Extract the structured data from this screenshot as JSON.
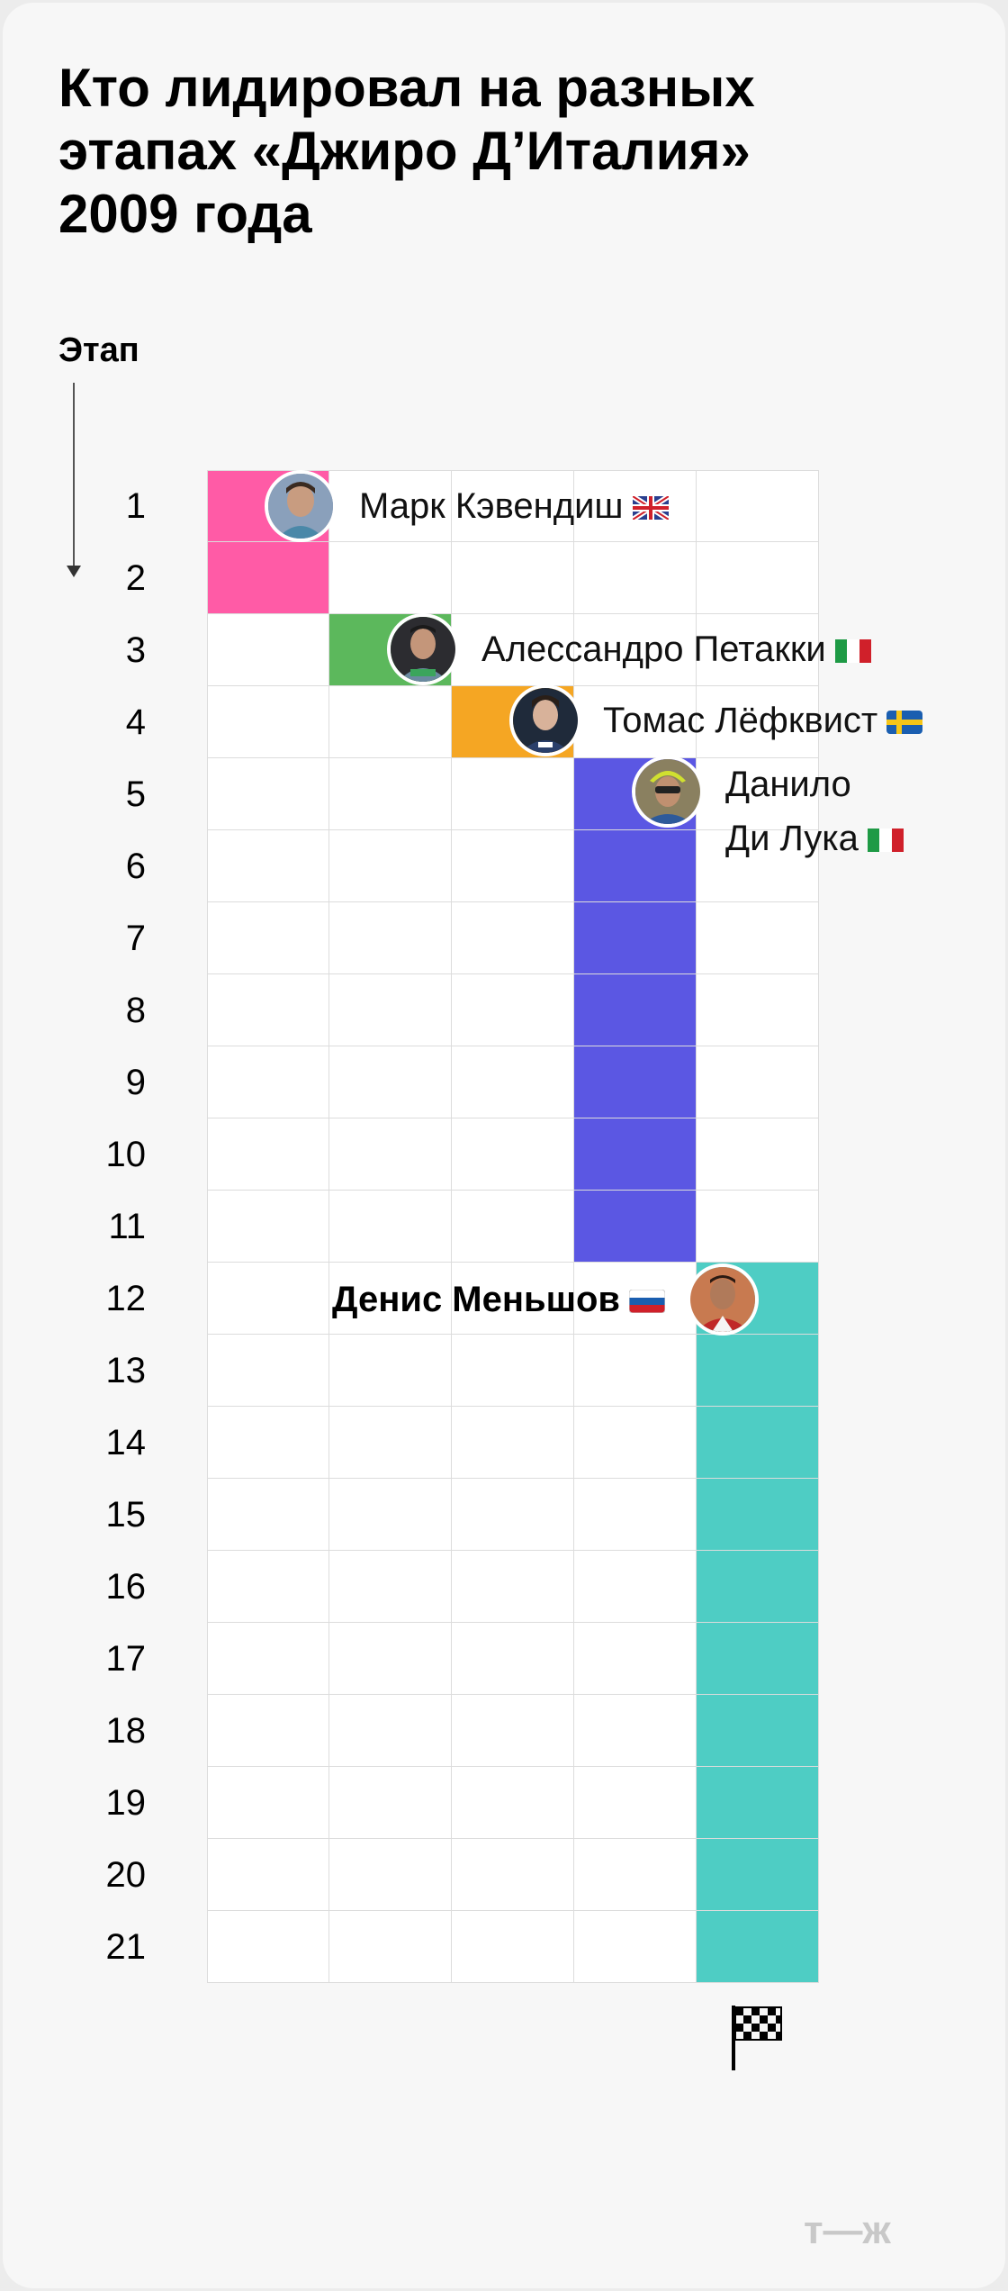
{
  "title_lines": [
    "Кто лидировал на разных",
    "этапах «Джиро Д’Италия»",
    "2009 года"
  ],
  "axis_label": "Этап",
  "chart_data": {
    "type": "table",
    "stages": [
      1,
      2,
      3,
      4,
      5,
      6,
      7,
      8,
      9,
      10,
      11,
      12,
      13,
      14,
      15,
      16,
      17,
      18,
      19,
      20,
      21
    ],
    "leaders": [
      {
        "name": "Марк Кэвендиш",
        "flag": "uk",
        "color": "#ff5ba6",
        "stage_from": 1,
        "stage_to": 2,
        "column": 1
      },
      {
        "name": "Алессандро Петакки",
        "flag": "it",
        "color": "#5cb85c",
        "stage_from": 3,
        "stage_to": 3,
        "column": 2
      },
      {
        "name": "Томас Лёфквист",
        "flag": "se",
        "color": "#f5a623",
        "stage_from": 4,
        "stage_to": 4,
        "column": 3
      },
      {
        "name": "Данило Ди Лука",
        "flag": "it",
        "color": "#5b57e3",
        "stage_from": 5,
        "stage_to": 11,
        "column": 4
      },
      {
        "name": "Денис Меньшов",
        "flag": "ru",
        "color": "#4ecdc4",
        "stage_from": 12,
        "stage_to": 21,
        "column": 5
      }
    ]
  },
  "labels": {
    "cavendish": "Марк Кэвендиш",
    "petacchi": "Алессандро Петакки",
    "lofkvist": "Томас Лёфквист",
    "diluca_line1": "Данило",
    "diluca_line2": "Ди Лука",
    "menchov": "Денис Меньшов"
  },
  "icons": {
    "finish": "checkered-flag-icon",
    "logo": "tzh-logo"
  },
  "logo_text": "т—ж"
}
